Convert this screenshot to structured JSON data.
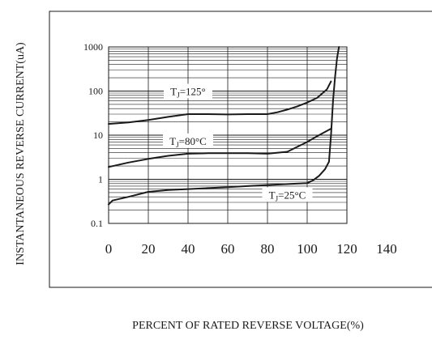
{
  "chart_data": {
    "type": "line",
    "xlabel": "PERCENT OF RATED REVERSE VOLTAGE(%)",
    "ylabel": "INSTANTANEOUS REVERSE CURRENT(uA)",
    "x_scale": "linear",
    "y_scale": "log",
    "xlim": [
      0,
      140
    ],
    "ylim": [
      0.1,
      1000
    ],
    "x_ticks": [
      0,
      20,
      40,
      60,
      80,
      100,
      120,
      140
    ],
    "x_tick_labels": [
      "0",
      "20",
      "40",
      "60",
      "80",
      "100",
      "120",
      "140"
    ],
    "y_ticks": [
      0.1,
      1,
      10,
      100,
      1000
    ],
    "y_tick_labels": [
      "0.1",
      "1",
      "10",
      "100",
      "1000"
    ],
    "grid": true,
    "series": [
      {
        "name_main": "T",
        "name_sub": "J",
        "name_rest": "=125°",
        "x": [
          0,
          10,
          20,
          30,
          40,
          50,
          60,
          70,
          80,
          85,
          90,
          95,
          100,
          105,
          110,
          112
        ],
        "y": [
          18,
          19.5,
          22,
          26,
          30,
          30,
          29.5,
          30,
          30,
          33,
          38,
          45,
          55,
          70,
          110,
          165
        ]
      },
      {
        "name_main": "T",
        "name_sub": "J",
        "name_rest": "=80°C",
        "x": [
          -3,
          10,
          20,
          30,
          40,
          50,
          60,
          70,
          80,
          90,
          100,
          105,
          112
        ],
        "y": [
          1.9,
          2.4,
          2.9,
          3.4,
          3.8,
          3.9,
          3.9,
          3.9,
          3.8,
          4.2,
          7,
          9.5,
          14
        ]
      },
      {
        "name_main": "T",
        "name_sub": "J",
        "name_rest": "=25°C",
        "x": [
          -1,
          2,
          10,
          20,
          30,
          40,
          50,
          60,
          70,
          80,
          90,
          100,
          103,
          106,
          109,
          111,
          112,
          113,
          114,
          115,
          116
        ],
        "y": [
          0.27,
          0.33,
          0.4,
          0.52,
          0.57,
          0.6,
          0.63,
          0.66,
          0.7,
          0.74,
          0.78,
          0.82,
          0.95,
          1.2,
          1.7,
          2.5,
          10,
          60,
          200,
          550,
          1000
        ]
      }
    ]
  }
}
